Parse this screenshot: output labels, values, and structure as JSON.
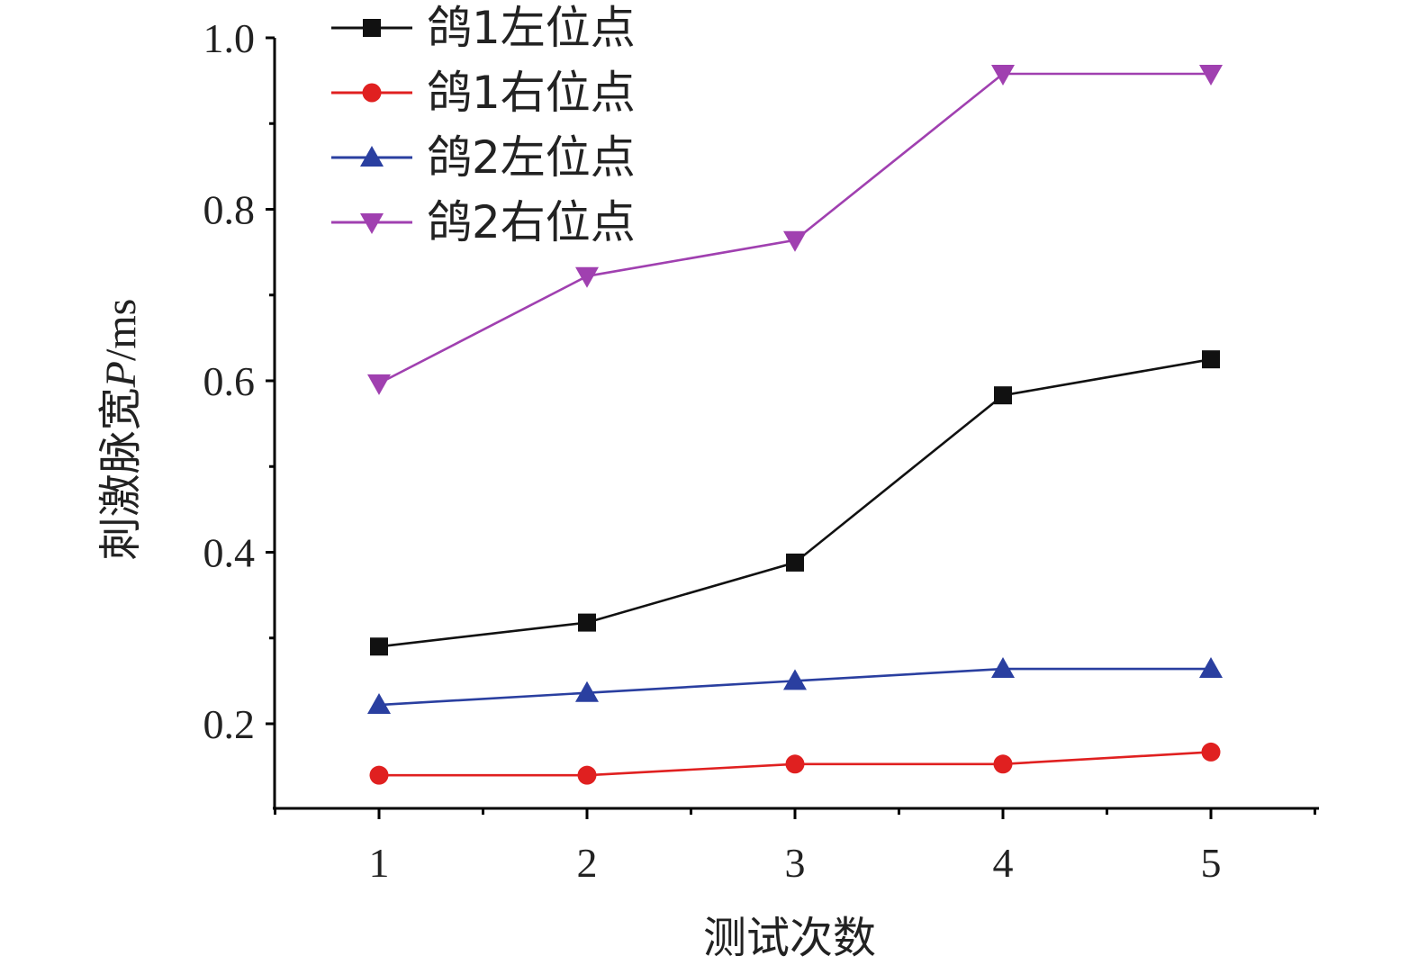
{
  "chart_data": {
    "type": "line",
    "x": [
      1,
      2,
      3,
      4,
      5
    ],
    "x_ticks": [
      "1",
      "2",
      "3",
      "4",
      "5"
    ],
    "y_ticks": [
      "0.2",
      "0.4",
      "0.6",
      "0.8",
      "1.0"
    ],
    "xlabel": "测试次数",
    "ylabel": "刺激脉宽P/ms",
    "ylabel_parts": {
      "pre": "刺激脉宽",
      "var": "P",
      "post": "/ms"
    },
    "xlim": [
      0.5,
      5.5
    ],
    "ylim": [
      0.1,
      1.0
    ],
    "grid": false,
    "legend_position": "top-left",
    "series": [
      {
        "name": "鸽1左位点",
        "color": "#111111",
        "marker": "square",
        "values": [
          0.29,
          0.318,
          0.388,
          0.583,
          0.625
        ]
      },
      {
        "name": "鸽1右位点",
        "color": "#e02020",
        "marker": "circle",
        "values": [
          0.14,
          0.14,
          0.153,
          0.153,
          0.167
        ]
      },
      {
        "name": "鸽2左位点",
        "color": "#2a3fa0",
        "marker": "triangle-up",
        "values": [
          0.222,
          0.236,
          0.25,
          0.264,
          0.264
        ]
      },
      {
        "name": "鸽2右位点",
        "color": "#a040b0",
        "marker": "triangle-down",
        "values": [
          0.597,
          0.722,
          0.764,
          0.958,
          0.958
        ]
      }
    ]
  }
}
